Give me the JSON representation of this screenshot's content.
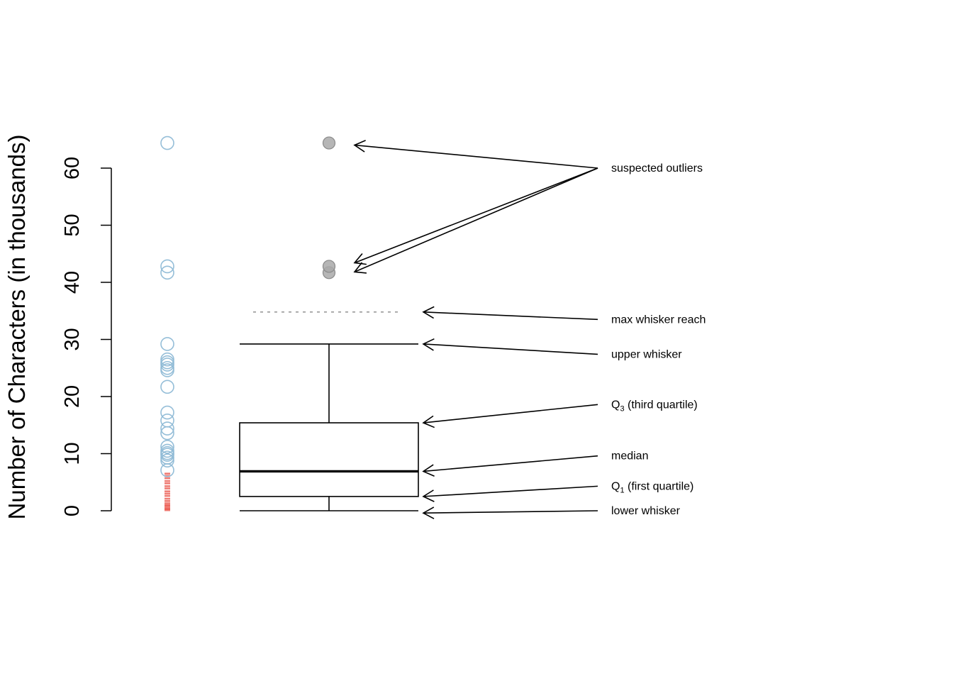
{
  "chart_data": {
    "type": "boxplot",
    "title": "",
    "xlabel": "",
    "ylabel": "Number of Characters (in thousands)",
    "ylim": [
      0,
      60
    ],
    "yticks": [
      0,
      10,
      20,
      30,
      40,
      50,
      60
    ],
    "grid": false,
    "strip_points": {
      "circles": [
        7.1,
        8.8,
        9.3,
        9.8,
        10.1,
        10.5,
        11.2,
        13.6,
        14.4,
        15.8,
        17.2,
        21.7,
        24.6,
        25.0,
        25.6,
        26.0,
        26.5,
        29.2,
        41.7,
        42.8,
        64.4
      ],
      "ticks": [
        0.1,
        0.3,
        0.5,
        0.8,
        1.0,
        1.3,
        1.7,
        2.1,
        2.6,
        3.0,
        3.4,
        3.9,
        4.3,
        4.8,
        5.2,
        5.7,
        6.1,
        6.5
      ]
    },
    "box": {
      "lower_whisker": 0.0,
      "q1": 2.5,
      "median": 6.9,
      "q3": 15.4,
      "upper_whisker": 29.2,
      "max_whisker_reach": 34.8,
      "outliers": [
        41.7,
        42.8,
        64.4
      ]
    },
    "annotations": [
      {
        "id": "suspected-outliers",
        "label_pre": "suspected outliers",
        "sub": "",
        "label_post": "",
        "y": 60,
        "targets": [
          64.4,
          42.8,
          41.7
        ]
      },
      {
        "id": "max-whisker-reach",
        "label_pre": "max whisker reach",
        "sub": "",
        "label_post": "",
        "y": 33.5,
        "targets": [
          34.8
        ]
      },
      {
        "id": "upper-whisker",
        "label_pre": "upper whisker",
        "sub": "",
        "label_post": "",
        "y": 27.4,
        "targets": [
          29.2
        ]
      },
      {
        "id": "q3",
        "label_pre": "Q",
        "sub": "3",
        "label_post": " (third quartile)",
        "y": 18.6,
        "targets": [
          15.4
        ]
      },
      {
        "id": "median",
        "label_pre": "median",
        "sub": "",
        "label_post": "",
        "y": 9.6,
        "targets": [
          6.9
        ]
      },
      {
        "id": "q1",
        "label_pre": "Q",
        "sub": "1",
        "label_post": " (first quartile)",
        "y": 4.3,
        "targets": [
          2.5
        ]
      },
      {
        "id": "lower-whisker",
        "label_pre": "lower whisker",
        "sub": "",
        "label_post": "",
        "y": 0.0,
        "targets": [
          -0.4
        ]
      }
    ],
    "colors": {
      "strip_circle": "#8fbbd6",
      "strip_tick": "#e8463b",
      "outlier_fill": "#a9a9a9",
      "outlier_stroke": "#8a8a8a",
      "reach_line": "#9a9a9a",
      "axis": "#000000"
    }
  }
}
